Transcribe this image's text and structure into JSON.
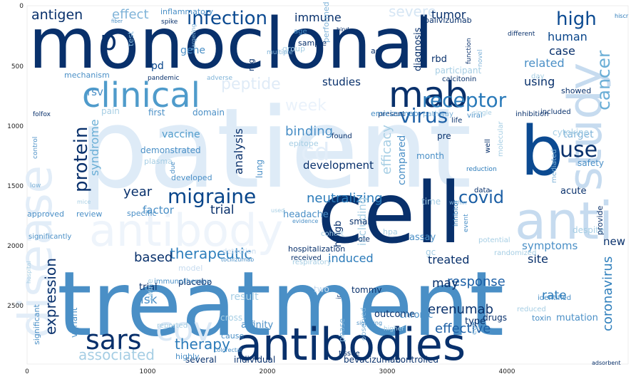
{
  "chart_data": {
    "type": "wordcloud",
    "colormap": "Blues",
    "background": "#ffffff",
    "x_ticks": [
      "0",
      "1000",
      "2000",
      "3000",
      "4000"
    ],
    "y_ticks": [
      "0",
      "500",
      "1000",
      "1500",
      "2000",
      "2500"
    ],
    "words": [
      {
        "text": "monoclonal",
        "color": "#08306b"
      },
      {
        "text": "patient",
        "color": "#deebf7"
      },
      {
        "text": "cell",
        "color": "#08306b"
      },
      {
        "text": "treatment",
        "color": "#4a8fc6"
      },
      {
        "text": "antibodies",
        "color": "#08306b"
      },
      {
        "text": "antibody",
        "color": "#eef4fb"
      },
      {
        "text": "disease",
        "color": "#e2edf8"
      },
      {
        "text": "anti",
        "color": "#c6dbef"
      },
      {
        "text": "study",
        "color": "#c6dbef"
      },
      {
        "text": "clinical",
        "color": "#4f9bcb"
      },
      {
        "text": "mab",
        "color": "#08306b"
      },
      {
        "text": "b",
        "color": "#0b4a91"
      },
      {
        "text": "sars",
        "color": "#08306b"
      },
      {
        "text": "cov",
        "color": "#dbe9f6"
      },
      {
        "text": "infection",
        "color": "#0b4a91"
      },
      {
        "text": "virus",
        "color": "#1c5fa5"
      },
      {
        "text": "receptor",
        "color": "#2a7ab9"
      },
      {
        "text": "migraine",
        "color": "#08458a"
      },
      {
        "text": "protein",
        "color": "#08306b"
      },
      {
        "text": "cancer",
        "color": "#6aaed6"
      },
      {
        "text": "use",
        "color": "#08306b"
      },
      {
        "text": "high",
        "color": "#0b4a91"
      },
      {
        "text": "covid",
        "color": "#1c5fa5"
      },
      {
        "text": "week",
        "color": "#eaf2fb"
      },
      {
        "text": "severe",
        "color": "#d6e6f4"
      },
      {
        "text": "peptide",
        "color": "#dfebf7"
      },
      {
        "text": "cd",
        "color": "#e3eef9"
      },
      {
        "text": "p",
        "color": "#08306b"
      },
      {
        "text": "therapeutic",
        "color": "#2f7fbc"
      },
      {
        "text": "response",
        "color": "#1c5fa5"
      },
      {
        "text": "neutralizing",
        "color": "#2a7ab9"
      },
      {
        "text": "efficacy",
        "color": "#a6cee4"
      },
      {
        "text": "expression",
        "color": "#08306b"
      },
      {
        "text": "therapy",
        "color": "#2a7ab9"
      },
      {
        "text": "erenumab",
        "color": "#08306b"
      },
      {
        "text": "coronavirus",
        "color": "#2f7fbc"
      },
      {
        "text": "effective",
        "color": "#1c5fa5"
      },
      {
        "text": "associated",
        "color": "#a6cee4"
      },
      {
        "text": "binding",
        "color": "#4a8fc6"
      },
      {
        "text": "antigen",
        "color": "#08306b"
      },
      {
        "text": "effect",
        "color": "#7fb3d8"
      },
      {
        "text": "immune",
        "color": "#08306b"
      },
      {
        "text": "tumor",
        "color": "#08306b"
      },
      {
        "text": "human",
        "color": "#08458a"
      },
      {
        "text": "case",
        "color": "#08306b"
      },
      {
        "text": "related",
        "color": "#4a8fc6"
      },
      {
        "text": "studies",
        "color": "#08306b"
      },
      {
        "text": "using",
        "color": "#08306b"
      },
      {
        "text": "rsv",
        "color": "#4a8fc6"
      },
      {
        "text": "pd",
        "color": "#08458a"
      },
      {
        "text": "gene",
        "color": "#4a8fc6"
      },
      {
        "text": "analysis",
        "color": "#08306b"
      },
      {
        "text": "syndrome",
        "color": "#6aaed6"
      },
      {
        "text": "vaccine",
        "color": "#4f9bcb"
      },
      {
        "text": "year",
        "color": "#08306b"
      },
      {
        "text": "trial",
        "color": "#08306b"
      },
      {
        "text": "factor",
        "color": "#4a8fc6"
      },
      {
        "text": "based",
        "color": "#08306b"
      },
      {
        "text": "induced",
        "color": "#2a7ab9"
      },
      {
        "text": "treated",
        "color": "#08306b"
      },
      {
        "text": "site",
        "color": "#08306b"
      },
      {
        "text": "new",
        "color": "#08306b"
      },
      {
        "text": "symptoms",
        "color": "#4a8fc6"
      },
      {
        "text": "may",
        "color": "#08306b"
      },
      {
        "text": "rate",
        "color": "#2a7ab9"
      },
      {
        "text": "risk",
        "color": "#4a8fc6"
      },
      {
        "text": "result",
        "color": "#a6cee4"
      },
      {
        "text": "target",
        "color": "#7fb3d8"
      },
      {
        "text": "acute",
        "color": "#08306b"
      },
      {
        "text": "safety",
        "color": "#4a8fc6"
      },
      {
        "text": "development",
        "color": "#08306b"
      },
      {
        "text": "including",
        "color": "#a6cee4"
      },
      {
        "text": "compared",
        "color": "#4a8fc6"
      },
      {
        "text": "trial",
        "color": "#08306b"
      },
      {
        "text": "placebo",
        "color": "#08306b"
      },
      {
        "text": "affinity",
        "color": "#4a8fc6"
      },
      {
        "text": "several",
        "color": "#08306b"
      },
      {
        "text": "individual",
        "color": "#08306b"
      },
      {
        "text": "bevacizumab",
        "color": "#08306b"
      },
      {
        "text": "controlled",
        "color": "#08306b"
      },
      {
        "text": "adsorbent",
        "color": "#08306b"
      },
      {
        "text": "colorectal",
        "color": "#4a8fc6"
      },
      {
        "text": "highly",
        "color": "#4a8fc6"
      },
      {
        "text": "variant",
        "color": "#4a8fc6"
      },
      {
        "text": "significant",
        "color": "#4a8fc6"
      },
      {
        "text": "inflammatory",
        "color": "#4a8fc6"
      },
      {
        "text": "spike",
        "color": "#08306b"
      },
      {
        "text": "fiber",
        "color": "#4a8fc6"
      },
      {
        "text": "test",
        "color": "#7fb3d8"
      },
      {
        "text": "targeting",
        "color": "#7fb3d8"
      },
      {
        "text": "performed",
        "color": "#7fb3d8"
      },
      {
        "text": "palivizumab",
        "color": "#08306b"
      },
      {
        "text": "different",
        "color": "#08306b"
      },
      {
        "text": "hiscr",
        "color": "#2a7ab9"
      },
      {
        "text": "age",
        "color": "#4a8fc6"
      },
      {
        "text": "bind",
        "color": "#08306b"
      },
      {
        "text": "sample",
        "color": "#08306b"
      },
      {
        "text": "group",
        "color": "#a6cee4"
      },
      {
        "text": "agr",
        "color": "#08306b"
      },
      {
        "text": "rbd",
        "color": "#08306b"
      },
      {
        "text": "function",
        "color": "#08306b"
      },
      {
        "text": "novel",
        "color": "#7fb3d8"
      },
      {
        "text": "multiple",
        "color": "#7fb3d8"
      },
      {
        "text": "mg",
        "color": "#08306b"
      },
      {
        "text": "diagnosis",
        "color": "#08306b"
      },
      {
        "text": "participant",
        "color": "#a6cee4"
      },
      {
        "text": "day",
        "color": "#a6cee4"
      },
      {
        "text": "mechanism",
        "color": "#4a8fc6"
      },
      {
        "text": "pandemic",
        "color": "#08306b"
      },
      {
        "text": "adverse",
        "color": "#7fb3d8"
      },
      {
        "text": "calcitonin",
        "color": "#08306b"
      },
      {
        "text": "showed",
        "color": "#08306b"
      },
      {
        "text": "present",
        "color": "#08306b"
      },
      {
        "text": "folfox",
        "color": "#08306b"
      },
      {
        "text": "pain",
        "color": "#a6cee4"
      },
      {
        "text": "first",
        "color": "#4a8fc6"
      },
      {
        "text": "domain",
        "color": "#4a8fc6"
      },
      {
        "text": "emicizumab",
        "color": "#4a8fc6"
      },
      {
        "text": "viral",
        "color": "#4a8fc6"
      },
      {
        "text": "pathway",
        "color": "#7fb3d8"
      },
      {
        "text": "single",
        "color": "#a6cee4"
      },
      {
        "text": "inhibition",
        "color": "#08306b"
      },
      {
        "text": "included",
        "color": "#08306b"
      },
      {
        "text": "control",
        "color": "#4a8fc6"
      },
      {
        "text": "demonstrated",
        "color": "#4a8fc6"
      },
      {
        "text": "plasma",
        "color": "#a6cee4"
      },
      {
        "text": "due",
        "color": "#4a8fc6"
      },
      {
        "text": "developed",
        "color": "#4a8fc6"
      },
      {
        "text": "lung",
        "color": "#4a8fc6"
      },
      {
        "text": "epitope",
        "color": "#a6cee4"
      },
      {
        "text": "found",
        "color": "#08306b"
      },
      {
        "text": "pre",
        "color": "#08306b"
      },
      {
        "text": "life",
        "color": "#08306b"
      },
      {
        "text": "well",
        "color": "#08306b"
      },
      {
        "text": "molecular",
        "color": "#a6cee4"
      },
      {
        "text": "cytokine",
        "color": "#a6cee4"
      },
      {
        "text": "month",
        "color": "#4a8fc6"
      },
      {
        "text": "reduction",
        "color": "#2a7ab9"
      },
      {
        "text": "data",
        "color": "#08306b"
      },
      {
        "text": "mediated",
        "color": "#7fb3d8"
      },
      {
        "text": "within",
        "color": "#7fb3d8"
      },
      {
        "text": "low",
        "color": "#7fb3d8"
      },
      {
        "text": "mice",
        "color": "#a6cee4"
      },
      {
        "text": "approved",
        "color": "#4a8fc6"
      },
      {
        "text": "review",
        "color": "#4a8fc6"
      },
      {
        "text": "specific",
        "color": "#4a8fc6"
      },
      {
        "text": "headache",
        "color": "#4a8fc6"
      },
      {
        "text": "used",
        "color": "#a6cee4"
      },
      {
        "text": "evidence",
        "color": "#4a8fc6"
      },
      {
        "text": "time",
        "color": "#a6cee4"
      },
      {
        "text": "small",
        "color": "#08306b"
      },
      {
        "text": "cohort",
        "color": "#a6cee4"
      },
      {
        "text": "hpa",
        "color": "#a6cee4"
      },
      {
        "text": "assay",
        "color": "#4a8fc6"
      },
      {
        "text": "role",
        "color": "#08306b"
      },
      {
        "text": "hmgb",
        "color": "#08306b"
      },
      {
        "text": "inhibitor",
        "color": "#2a7ab9"
      },
      {
        "text": "event",
        "color": "#4a8fc6"
      },
      {
        "text": "despite",
        "color": "#a6cee4"
      },
      {
        "text": "provide",
        "color": "#08306b"
      },
      {
        "text": "significantly",
        "color": "#4a8fc6"
      },
      {
        "text": "hospitalization",
        "color": "#08306b"
      },
      {
        "text": "received",
        "color": "#08306b"
      },
      {
        "text": "gc",
        "color": "#a6cee4"
      },
      {
        "text": "potential",
        "color": "#a6cee4"
      },
      {
        "text": "randomized",
        "color": "#a6cee4"
      },
      {
        "text": "hospital",
        "color": "#a6cee4"
      },
      {
        "text": "detection",
        "color": "#c6dbef"
      },
      {
        "text": "tocilizumab",
        "color": "#4a8fc6"
      },
      {
        "text": "model",
        "color": "#c6dbef"
      },
      {
        "text": "immunotherapy",
        "color": "#4a8fc6"
      },
      {
        "text": "swine",
        "color": "#a6cee4"
      },
      {
        "text": "respiratory",
        "color": "#a6cee4"
      },
      {
        "text": "two",
        "color": "#c6dbef"
      },
      {
        "text": "tommv",
        "color": "#08306b"
      },
      {
        "text": "ir",
        "color": "#08306b"
      },
      {
        "text": "identified",
        "color": "#4a8fc6"
      },
      {
        "text": "reduced",
        "color": "#a6cee4"
      },
      {
        "text": "mutation",
        "color": "#4a8fc6"
      },
      {
        "text": "drugs",
        "color": "#08306b"
      },
      {
        "text": "outcome",
        "color": "#08306b"
      },
      {
        "text": "egfr",
        "color": "#7fb3d8"
      },
      {
        "text": "type",
        "color": "#08306b"
      },
      {
        "text": "toxin",
        "color": "#4a8fc6"
      },
      {
        "text": "reported",
        "color": "#a6cee4"
      },
      {
        "text": "cross",
        "color": "#a6cee4"
      },
      {
        "text": "phase",
        "color": "#7fb3d8"
      },
      {
        "text": "observed",
        "color": "#7fb3d8"
      },
      {
        "text": "chronic",
        "color": "#4a8fc6"
      },
      {
        "text": "higher",
        "color": "#a6cee4"
      },
      {
        "text": "signaling",
        "color": "#4a8fc6"
      },
      {
        "text": "cause",
        "color": "#4a8fc6"
      },
      {
        "text": "tissue",
        "color": "#08306b"
      }
    ]
  }
}
